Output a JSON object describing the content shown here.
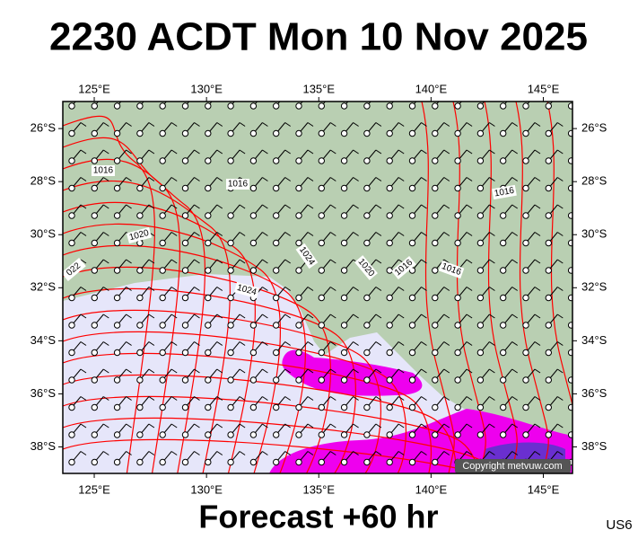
{
  "header": {
    "title": "2230 ACDT Mon 10 Nov 2025"
  },
  "map": {
    "xlim": [
      123.6,
      146.3
    ],
    "ylim": [
      -24.98,
      -39.0
    ],
    "lon_ticks": [
      {
        "value": 125,
        "label": "125°E"
      },
      {
        "value": 130,
        "label": "130°E"
      },
      {
        "value": 135,
        "label": "135°E"
      },
      {
        "value": 140,
        "label": "140°E"
      },
      {
        "value": 145,
        "label": "145°E"
      }
    ],
    "lat_ticks": [
      {
        "value": -26,
        "label": "26°S"
      },
      {
        "value": -28,
        "label": "28°S"
      },
      {
        "value": -30,
        "label": "30°S"
      },
      {
        "value": -32,
        "label": "32°S"
      },
      {
        "value": -34,
        "label": "34°S"
      },
      {
        "value": -36,
        "label": "36°S"
      },
      {
        "value": -38,
        "label": "38°S"
      }
    ],
    "isobar_labels": [
      "1016",
      "1016",
      "1020",
      "022",
      "1024",
      "1024",
      "1020",
      "1016",
      "1016",
      "1016"
    ],
    "copyright": "Copyright metvuw.com"
  },
  "footer": {
    "caption": "Forecast +60 hr",
    "code": "US6"
  }
}
